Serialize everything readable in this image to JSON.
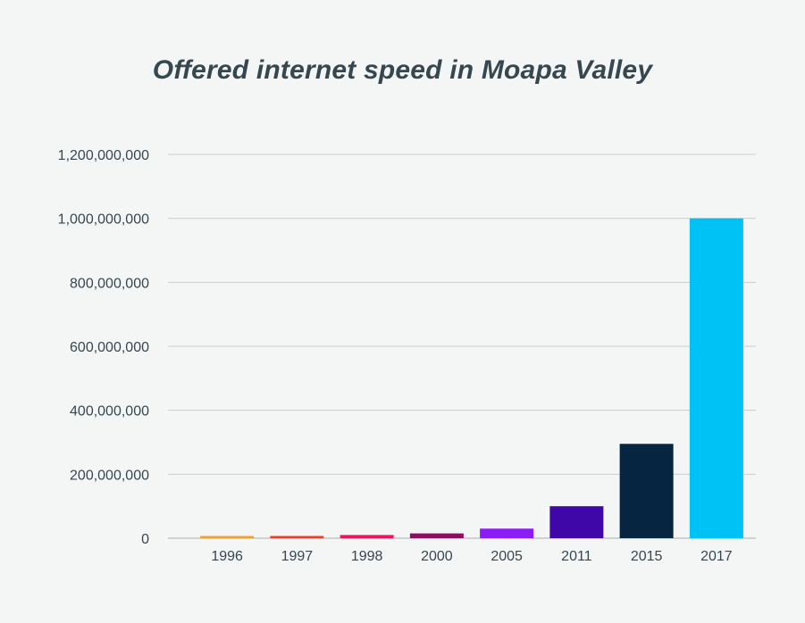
{
  "chart_data": {
    "type": "bar",
    "title": "Offered internet speed in Moapa Valley",
    "xlabel": "",
    "ylabel": "",
    "categories": [
      "1996",
      "1997",
      "1998",
      "2000",
      "2005",
      "2011",
      "2015",
      "2017"
    ],
    "values": [
      5000000,
      7000000,
      10000000,
      15000000,
      30000000,
      100000000,
      295000000,
      1000000000
    ],
    "ylim": [
      0,
      1200000000
    ],
    "yticks": [
      0,
      200000000,
      400000000,
      600000000,
      800000000,
      1000000000,
      1200000000
    ],
    "ytick_labels": [
      "0",
      "200,000,000",
      "400,000,000",
      "600,000,000",
      "800,000,000",
      "1,000,000,000",
      "1,200,000,000"
    ],
    "bar_colors": [
      "#f0a035",
      "#e8402a",
      "#f0155a",
      "#8a0f5e",
      "#8a1cf5",
      "#3f07a8",
      "#062540",
      "#00c2f5"
    ],
    "grid": true,
    "legend": "none"
  }
}
